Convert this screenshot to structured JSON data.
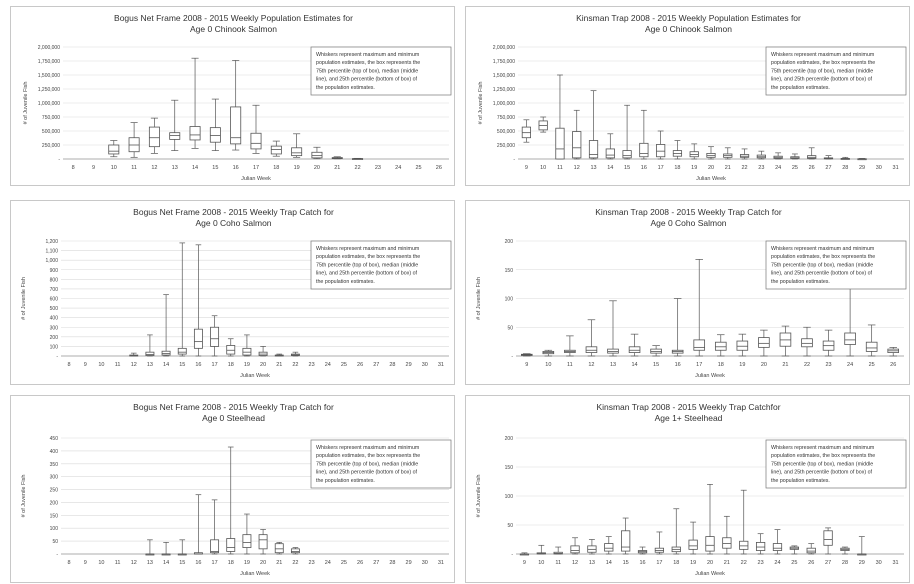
{
  "note_text": [
    "Whiskers represent maximum and minimum",
    "population estimates, the box represents the",
    "75th percentile (top of box), median (middle",
    "line), and 25th percentile (bottom of box) of",
    "the population estimates."
  ],
  "colors": {
    "box": "#555555",
    "grid": "#d9d9d9",
    "text": "#333333"
  },
  "chart_data": [
    {
      "type": "box",
      "title": [
        "Bogus Net Frame 2008 - 2015 Weekly Population Estimates for",
        "Age 0 Chinook Salmon"
      ],
      "xlabel": "Julian Week",
      "ylabel": "# of Juvenile Fish",
      "ylim": [
        0,
        2000000
      ],
      "yticks": [
        0,
        250000,
        500000,
        750000,
        1000000,
        1250000,
        1500000,
        1750000,
        2000000
      ],
      "ytick_labels": [
        "-",
        "250,000",
        "500,000",
        "750,000",
        "1,000,000",
        "1,250,000",
        "1,500,000",
        "1,750,000",
        "2,000,000"
      ],
      "categories": [
        "8",
        "9",
        "10",
        "11",
        "12",
        "13",
        "14",
        "15",
        "16",
        "17",
        "18",
        "19",
        "20",
        "21",
        "22",
        "23",
        "24",
        "25",
        "26"
      ],
      "boxes": [
        [
          0,
          0,
          0,
          0,
          0
        ],
        [
          0,
          0,
          0,
          0,
          0
        ],
        [
          40000,
          90000,
          140000,
          250000,
          330000
        ],
        [
          30000,
          130000,
          250000,
          380000,
          650000
        ],
        [
          100000,
          220000,
          380000,
          570000,
          730000
        ],
        [
          150000,
          350000,
          420000,
          470000,
          1050000
        ],
        [
          190000,
          340000,
          430000,
          580000,
          1800000
        ],
        [
          150000,
          300000,
          420000,
          560000,
          1070000
        ],
        [
          160000,
          270000,
          380000,
          930000,
          1760000
        ],
        [
          100000,
          180000,
          280000,
          460000,
          960000
        ],
        [
          50000,
          90000,
          170000,
          230000,
          320000
        ],
        [
          30000,
          60000,
          110000,
          200000,
          450000
        ],
        [
          5000,
          20000,
          60000,
          120000,
          210000
        ],
        [
          3000,
          8000,
          15000,
          25000,
          40000
        ],
        [
          0,
          2000,
          5000,
          8000,
          12000
        ],
        [
          0,
          0,
          0,
          0,
          0
        ],
        [
          0,
          0,
          0,
          0,
          0
        ],
        [
          0,
          0,
          0,
          0,
          0
        ],
        [
          0,
          0,
          0,
          0,
          0
        ]
      ]
    },
    {
      "type": "box",
      "title": [
        "Kinsman Trap 2008 - 2015 Weekly Population Estimates for",
        "Age 0 Chinook Salmon"
      ],
      "xlabel": "Julian Week",
      "ylabel": "# of Juvenile Fish",
      "ylim": [
        0,
        2000000
      ],
      "yticks": [
        0,
        250000,
        500000,
        750000,
        1000000,
        1250000,
        1500000,
        1750000,
        2000000
      ],
      "ytick_labels": [
        "-",
        "250,000",
        "500,000",
        "750,000",
        "1,000,000",
        "1,250,000",
        "1,500,000",
        "1,750,000",
        "2,000,000"
      ],
      "categories": [
        "9",
        "10",
        "11",
        "12",
        "13",
        "14",
        "15",
        "16",
        "17",
        "18",
        "19",
        "20",
        "21",
        "22",
        "23",
        "24",
        "25",
        "26",
        "27",
        "28",
        "29",
        "30",
        "31"
      ],
      "boxes": [
        [
          300000,
          380000,
          470000,
          570000,
          700000
        ],
        [
          480000,
          520000,
          600000,
          680000,
          750000
        ],
        [
          0,
          0,
          180000,
          550000,
          1500000
        ],
        [
          0,
          20000,
          200000,
          490000,
          870000
        ],
        [
          0,
          20000,
          80000,
          330000,
          1220000
        ],
        [
          0,
          20000,
          70000,
          180000,
          450000
        ],
        [
          0,
          20000,
          60000,
          150000,
          960000
        ],
        [
          0,
          40000,
          100000,
          280000,
          870000
        ],
        [
          0,
          40000,
          140000,
          260000,
          500000
        ],
        [
          0,
          50000,
          100000,
          150000,
          330000
        ],
        [
          0,
          40000,
          80000,
          130000,
          270000
        ],
        [
          0,
          30000,
          60000,
          100000,
          220000
        ],
        [
          0,
          30000,
          60000,
          90000,
          200000
        ],
        [
          0,
          30000,
          50000,
          80000,
          180000
        ],
        [
          0,
          20000,
          40000,
          70000,
          140000
        ],
        [
          0,
          10000,
          30000,
          50000,
          110000
        ],
        [
          0,
          10000,
          20000,
          40000,
          90000
        ],
        [
          0,
          10000,
          30000,
          60000,
          200000
        ],
        [
          0,
          5000,
          10000,
          20000,
          60000
        ],
        [
          0,
          3000,
          6000,
          10000,
          30000
        ],
        [
          0,
          1000,
          3000,
          5000,
          10000
        ],
        [
          0,
          0,
          0,
          0,
          0
        ],
        [
          0,
          0,
          0,
          0,
          0
        ]
      ]
    },
    {
      "type": "box",
      "title": [
        "Bogus Net Frame 2008 - 2015 Weekly Trap Catch for",
        "Age 0 Coho Salmon"
      ],
      "xlabel": "Julian Week",
      "ylabel": "# of Juvenile Fish",
      "ylim": [
        0,
        1200
      ],
      "yticks": [
        0,
        100,
        200,
        300,
        400,
        500,
        600,
        700,
        800,
        900,
        1000,
        1100,
        1200
      ],
      "ytick_labels": [
        "-",
        "100",
        "200",
        "300",
        "400",
        "500",
        "600",
        "700",
        "800",
        "900",
        "1,000",
        "1,100",
        "1,200"
      ],
      "categories": [
        "8",
        "9",
        "10",
        "11",
        "12",
        "13",
        "14",
        "15",
        "16",
        "17",
        "18",
        "19",
        "20",
        "21",
        "22",
        "23",
        "24",
        "25",
        "26",
        "27",
        "28",
        "29",
        "30",
        "31"
      ],
      "boxes": [
        [
          0,
          0,
          0,
          0,
          0
        ],
        [
          0,
          0,
          0,
          0,
          0
        ],
        [
          0,
          0,
          0,
          0,
          0
        ],
        [
          0,
          0,
          0,
          0,
          0
        ],
        [
          0,
          2,
          5,
          10,
          30
        ],
        [
          0,
          5,
          15,
          40,
          220
        ],
        [
          0,
          10,
          25,
          50,
          640
        ],
        [
          0,
          20,
          40,
          80,
          1180
        ],
        [
          0,
          80,
          150,
          280,
          1160
        ],
        [
          0,
          100,
          180,
          300,
          420
        ],
        [
          0,
          20,
          60,
          110,
          180
        ],
        [
          0,
          10,
          40,
          80,
          220
        ],
        [
          0,
          5,
          20,
          40,
          100
        ],
        [
          0,
          2,
          5,
          10,
          20
        ],
        [
          0,
          5,
          10,
          20,
          40
        ],
        [
          0,
          0,
          0,
          0,
          0
        ],
        [
          0,
          0,
          0,
          0,
          0
        ],
        [
          0,
          0,
          0,
          0,
          0
        ],
        [
          0,
          0,
          0,
          0,
          0
        ],
        [
          0,
          0,
          0,
          0,
          0
        ],
        [
          0,
          0,
          0,
          0,
          0
        ],
        [
          0,
          0,
          0,
          0,
          0
        ],
        [
          0,
          0,
          0,
          0,
          0
        ],
        [
          0,
          0,
          0,
          0,
          0
        ]
      ]
    },
    {
      "type": "box",
      "title": [
        "Kinsman Trap 2008 - 2015 Weekly Trap Catch for",
        "Age 0 Coho Salmon"
      ],
      "xlabel": "Julian Week",
      "ylabel": "# of Juvenile Fish",
      "ylim": [
        0,
        200
      ],
      "yticks": [
        0,
        50,
        100,
        150,
        200
      ],
      "ytick_labels": [
        "-",
        "50",
        "100",
        "150",
        "200"
      ],
      "categories": [
        "9",
        "10",
        "11",
        "12",
        "13",
        "14",
        "15",
        "16",
        "17",
        "18",
        "19",
        "20",
        "21",
        "22",
        "23",
        "24",
        "25",
        "26"
      ],
      "boxes": [
        [
          0,
          1,
          2,
          3,
          4
        ],
        [
          0,
          4,
          6,
          8,
          10
        ],
        [
          0,
          6,
          8,
          10,
          35
        ],
        [
          0,
          6,
          10,
          16,
          63
        ],
        [
          0,
          5,
          8,
          12,
          96
        ],
        [
          0,
          6,
          10,
          16,
          38
        ],
        [
          0,
          5,
          8,
          12,
          18
        ],
        [
          0,
          5,
          8,
          10,
          100
        ],
        [
          0,
          10,
          15,
          28,
          168
        ],
        [
          0,
          10,
          16,
          24,
          37
        ],
        [
          0,
          10,
          17,
          26,
          38
        ],
        [
          0,
          15,
          22,
          32,
          45
        ],
        [
          0,
          17,
          28,
          40,
          52
        ],
        [
          0,
          16,
          22,
          30,
          50
        ],
        [
          0,
          10,
          18,
          26,
          45
        ],
        [
          0,
          20,
          28,
          40,
          160
        ],
        [
          0,
          8,
          14,
          24,
          54
        ],
        [
          0,
          6,
          9,
          12,
          15
        ]
      ]
    },
    {
      "type": "box",
      "title": [
        "Bogus Net Frame 2008 - 2015 Weekly Trap Catch for",
        "Age 0 Steelhead"
      ],
      "xlabel": "Julian Week",
      "ylabel": "# of Juvenile Fish",
      "ylim": [
        0,
        450
      ],
      "yticks": [
        0,
        50,
        100,
        150,
        200,
        250,
        300,
        350,
        400,
        450
      ],
      "ytick_labels": [
        "-",
        "50",
        "100",
        "150",
        "200",
        "250",
        "300",
        "350",
        "400",
        "450"
      ],
      "categories": [
        "8",
        "9",
        "10",
        "11",
        "12",
        "13",
        "14",
        "15",
        "16",
        "17",
        "18",
        "19",
        "20",
        "21",
        "22",
        "23",
        "24",
        "25",
        "26",
        "27",
        "28",
        "29",
        "30",
        "31"
      ],
      "boxes": [
        [
          0,
          0,
          0,
          0,
          0
        ],
        [
          0,
          0,
          0,
          0,
          0
        ],
        [
          0,
          0,
          0,
          0,
          0
        ],
        [
          0,
          0,
          0,
          0,
          0
        ],
        [
          0,
          0,
          0,
          0,
          0
        ],
        [
          0,
          0,
          0,
          0,
          55
        ],
        [
          0,
          0,
          0,
          0,
          45
        ],
        [
          0,
          0,
          0,
          0,
          55
        ],
        [
          0,
          0,
          0,
          5,
          230
        ],
        [
          0,
          5,
          10,
          55,
          210
        ],
        [
          0,
          10,
          25,
          60,
          415
        ],
        [
          0,
          25,
          45,
          75,
          155
        ],
        [
          0,
          20,
          55,
          75,
          95
        ],
        [
          0,
          5,
          20,
          40,
          45
        ],
        [
          0,
          5,
          10,
          20,
          25
        ],
        [
          0,
          0,
          0,
          0,
          0
        ],
        [
          0,
          0,
          0,
          0,
          0
        ],
        [
          0,
          0,
          0,
          0,
          0
        ],
        [
          0,
          0,
          0,
          0,
          0
        ],
        [
          0,
          0,
          0,
          0,
          0
        ],
        [
          0,
          0,
          0,
          0,
          0
        ],
        [
          0,
          0,
          0,
          0,
          0
        ],
        [
          0,
          0,
          0,
          0,
          0
        ],
        [
          0,
          0,
          0,
          0,
          0
        ]
      ]
    },
    {
      "type": "box",
      "title": [
        "Kinsman Trap 2008 - 2015 Weekly Trap Catchfor",
        "Age 1+ Steelhead"
      ],
      "xlabel": "Julian Week",
      "ylabel": "# of Juvenile Fish",
      "ylim": [
        0,
        200
      ],
      "yticks": [
        0,
        50,
        100,
        150,
        200
      ],
      "ytick_labels": [
        "-",
        "50",
        "100",
        "150",
        "200"
      ],
      "categories": [
        "9",
        "10",
        "11",
        "12",
        "13",
        "14",
        "15",
        "16",
        "17",
        "18",
        "19",
        "20",
        "21",
        "22",
        "23",
        "24",
        "25",
        "26",
        "27",
        "28",
        "29",
        "30",
        "31"
      ],
      "boxes": [
        [
          0,
          0,
          0,
          0,
          2
        ],
        [
          0,
          0,
          1,
          2,
          15
        ],
        [
          0,
          0,
          1,
          3,
          12
        ],
        [
          0,
          2,
          6,
          14,
          28
        ],
        [
          0,
          3,
          8,
          14,
          25
        ],
        [
          0,
          5,
          10,
          18,
          30
        ],
        [
          0,
          5,
          12,
          40,
          62
        ],
        [
          0,
          2,
          4,
          6,
          12
        ],
        [
          0,
          3,
          6,
          10,
          38
        ],
        [
          0,
          4,
          8,
          12,
          78
        ],
        [
          0,
          8,
          14,
          24,
          55
        ],
        [
          0,
          5,
          15,
          30,
          120
        ],
        [
          0,
          10,
          18,
          28,
          65
        ],
        [
          0,
          8,
          14,
          22,
          110
        ],
        [
          0,
          6,
          12,
          20,
          35
        ],
        [
          0,
          6,
          10,
          18,
          42
        ],
        [
          0,
          8,
          10,
          12,
          14
        ],
        [
          0,
          2,
          5,
          10,
          18
        ],
        [
          0,
          15,
          25,
          40,
          45
        ],
        [
          0,
          6,
          8,
          10,
          12
        ],
        [
          0,
          0,
          0,
          0,
          30
        ],
        [
          0,
          0,
          0,
          0,
          0
        ],
        [
          0,
          0,
          0,
          0,
          0
        ]
      ]
    }
  ]
}
